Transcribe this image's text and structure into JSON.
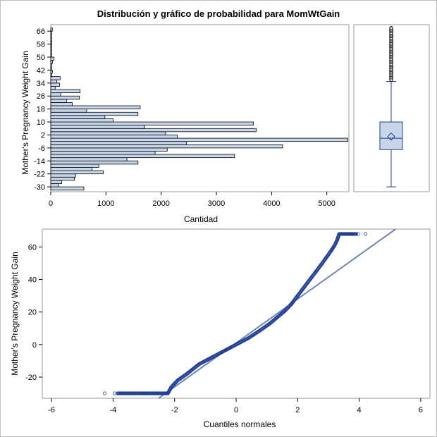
{
  "title": "Distribución y gráfico de probabilidad para MomWtGain",
  "chart_data": [
    {
      "type": "bar",
      "orientation": "horizontal",
      "ylabel": "Mother's Pregnancy Weight Gain",
      "xlabel": "Cantidad",
      "xlim": [
        0,
        5400
      ],
      "xticks": [
        0,
        1000,
        2000,
        3000,
        4000,
        5000
      ],
      "ylim": [
        -33,
        70
      ],
      "yticks": [
        -30,
        -22,
        -14,
        -6,
        2,
        10,
        18,
        26,
        34,
        42,
        50,
        58,
        66
      ],
      "categories": [
        -31,
        -29,
        -27,
        -25,
        -23,
        -21,
        -19,
        -17,
        -15,
        -13,
        -11,
        -9,
        -7,
        -5,
        -3,
        -1,
        1,
        3,
        5,
        7,
        9,
        11,
        13,
        15,
        17,
        19,
        21,
        23,
        25,
        27,
        29,
        31,
        33,
        35,
        37,
        39,
        41,
        43,
        45,
        47,
        49,
        51,
        53,
        55,
        57,
        59,
        61,
        63,
        65,
        67
      ],
      "values": [
        600,
        140,
        200,
        430,
        450,
        950,
        750,
        870,
        1580,
        1380,
        3330,
        1890,
        2110,
        4200,
        2460,
        5380,
        2290,
        2080,
        3720,
        1700,
        3670,
        1130,
        980,
        1580,
        650,
        1620,
        390,
        290,
        520,
        180,
        530,
        80,
        160,
        110,
        170,
        20,
        30,
        15,
        15,
        30,
        60,
        10,
        5,
        5,
        5,
        20,
        5,
        5,
        5,
        30
      ]
    },
    {
      "type": "box",
      "ylim": [
        -33,
        70
      ],
      "min": -30,
      "q1": -7,
      "median": 0,
      "mean": 1,
      "q3": 10,
      "whisker_high": 35,
      "outliers": [
        36,
        37,
        38,
        39,
        40,
        41,
        42,
        43,
        44,
        45,
        46,
        47,
        48,
        49,
        50,
        51,
        52,
        53,
        54,
        55,
        56,
        57,
        58,
        59,
        60,
        61,
        62,
        63,
        64,
        65,
        66,
        67,
        68
      ]
    },
    {
      "type": "scatter",
      "subtype": "normal-probability",
      "xlabel": "Cuantiles normales",
      "ylabel": "Mother's Pregnancy Weight Gain",
      "xlim": [
        -6.3,
        6.3
      ],
      "xticks": [
        -6,
        -4,
        -2,
        0,
        2,
        4,
        6
      ],
      "ylim": [
        -33,
        71
      ],
      "yticks": [
        -20,
        0,
        20,
        40,
        60
      ],
      "reference_line": {
        "intercept": 1.0,
        "slope": 13.5
      },
      "curve": [
        [
          -2.22,
          -30
        ],
        [
          -2.1,
          -26
        ],
        [
          -1.9,
          -22
        ],
        [
          -1.6,
          -18
        ],
        [
          -1.2,
          -12
        ],
        [
          -0.8,
          -8
        ],
        [
          -0.4,
          -4
        ],
        [
          0,
          0
        ],
        [
          0.4,
          4
        ],
        [
          0.8,
          9
        ],
        [
          1.1,
          13
        ],
        [
          1.35,
          17
        ],
        [
          1.6,
          21
        ],
        [
          1.8,
          25
        ],
        [
          2.0,
          30
        ],
        [
          2.2,
          35
        ],
        [
          2.4,
          40
        ],
        [
          2.6,
          45
        ],
        [
          2.8,
          50
        ],
        [
          2.95,
          54
        ],
        [
          3.1,
          58
        ],
        [
          3.2,
          61
        ],
        [
          3.28,
          64
        ],
        [
          3.35,
          68
        ]
      ],
      "low_tail": [
        -4.27,
        -3.95,
        -3.85,
        -3.72,
        -3.6,
        -3.5,
        -3.4,
        -3.3,
        -3.2,
        -3.1,
        -3.0,
        -2.9,
        -2.8,
        -2.7,
        -2.6,
        -2.5,
        -2.4,
        -2.3
      ],
      "low_tail_value": -30,
      "high_tail": [
        3.4,
        3.45,
        3.5,
        3.55,
        3.6,
        3.65,
        3.7,
        3.75,
        3.8,
        3.85,
        3.9,
        3.96,
        4.2
      ],
      "high_tail_value": 68
    }
  ],
  "colors": {
    "bar_fill": "#c8d6ea",
    "bar_stroke": "#000000",
    "marker": "#1f3c93",
    "ref_line": "#6f86b5",
    "box_fill": "#c8d6ea",
    "box_stroke": "#1f3c93",
    "frame": "#999999"
  }
}
